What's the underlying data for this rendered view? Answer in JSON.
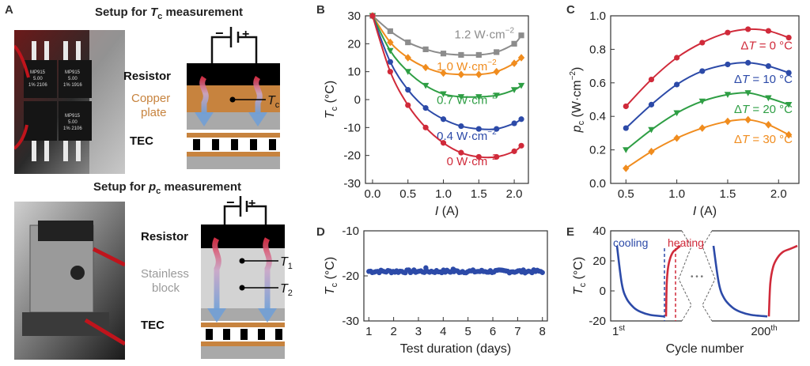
{
  "panels": {
    "A": "A",
    "B": "B",
    "C": "C",
    "D": "D",
    "E": "E"
  },
  "panel_a": {
    "top_title_prefix": "Setup for ",
    "top_title_symbol": "T",
    "top_title_sub": "c",
    "top_title_suffix": " measurement",
    "top_labels": {
      "resistor": "Resistor",
      "plate_line1": "Copper",
      "plate_line2": "plate",
      "probe_symbol": "T",
      "probe_sub": "c",
      "tec": "TEC",
      "minus": "−",
      "plus": "+"
    },
    "top_photo_text": [
      "MP915",
      "5.00",
      "1% 2106",
      "MP915",
      "5.00",
      "1% 1916",
      "MP915",
      "5.00",
      "1% 2106"
    ],
    "bottom_title_prefix": "Setup for ",
    "bottom_title_symbol": "p",
    "bottom_title_sub": "c",
    "bottom_title_suffix": " measurement",
    "bottom_labels": {
      "resistor": "Resistor",
      "block_line1": "Stainless",
      "block_line2": "block",
      "probe1_symbol": "T",
      "probe1_sub": "1",
      "probe2_symbol": "T",
      "probe2_sub": "2",
      "tec": "TEC",
      "minus": "−",
      "plus": "+"
    }
  },
  "chart_data": [
    {
      "panel": "B",
      "type": "line",
      "xlabel": "I (A)",
      "ylabel": "Tc (°C)",
      "xlim": [
        -0.1,
        2.2
      ],
      "ylim": [
        -30,
        30
      ],
      "xticks": [
        "0.0",
        "0.5",
        "1.0",
        "1.5",
        "2.0"
      ],
      "yticks": [
        "-30",
        "-20",
        "-10",
        "0",
        "10",
        "20",
        "30"
      ],
      "x": [
        0,
        0.25,
        0.5,
        0.75,
        1.0,
        1.25,
        1.5,
        1.75,
        2.0,
        2.1
      ],
      "series": [
        {
          "name": "1.2 W·cm−2",
          "color": "#8c8c8c",
          "marker": "square",
          "values": [
            30,
            24.5,
            20.5,
            18,
            16.5,
            16,
            16,
            17,
            20,
            23
          ]
        },
        {
          "name": "1.0 W·cm−2",
          "color": "#f08c1e",
          "marker": "diamond",
          "values": [
            30,
            20.5,
            15,
            11.5,
            9.5,
            9,
            9,
            10,
            13,
            15
          ]
        },
        {
          "name": "0.7 W·cm−2",
          "color": "#2e9e44",
          "marker": "triangle-down",
          "values": [
            30,
            17.5,
            10,
            5,
            2,
            1,
            1,
            1.5,
            3.5,
            5
          ]
        },
        {
          "name": "0.4 W·cm−2",
          "color": "#2c4aa8",
          "marker": "circle",
          "values": [
            30,
            13.5,
            3.5,
            -3,
            -7,
            -9.5,
            -10.5,
            -10.5,
            -8.5,
            -7
          ]
        },
        {
          "name": "0 W·cm−2",
          "color": "#d02a3a",
          "marker": "circle",
          "values": [
            30,
            10,
            -2,
            -10,
            -15.5,
            -19,
            -20.5,
            -20.5,
            -18.5,
            -16.5
          ]
        }
      ],
      "series_labels": [
        {
          "text": "1.2 W·cm",
          "exp": "−2",
          "color": "#8c8c8c"
        },
        {
          "text": "1.0 W·cm",
          "exp": "−2",
          "color": "#f08c1e"
        },
        {
          "text": "0.7 W·cm",
          "exp": "−2",
          "color": "#2e9e44"
        },
        {
          "text": "0.4 W·cm",
          "exp": "−2",
          "color": "#2c4aa8"
        },
        {
          "text": "0 W·cm",
          "exp": "−2",
          "color": "#d02a3a"
        }
      ],
      "ylabel_parts": {
        "symbol": "T",
        "sub": "c",
        "unit": " (°C)"
      },
      "xlabel_parts": {
        "symbol": "I",
        "unit": " (A)"
      }
    },
    {
      "panel": "C",
      "type": "line",
      "xlabel": "I (A)",
      "ylabel": "pc (W·cm−2)",
      "xlim": [
        0.35,
        2.2
      ],
      "ylim": [
        0.0,
        1.0
      ],
      "xticks": [
        "0.5",
        "1.0",
        "1.5",
        "2.0"
      ],
      "yticks": [
        "0.0",
        "0.2",
        "0.4",
        "0.6",
        "0.8",
        "1.0"
      ],
      "x": [
        0.5,
        0.75,
        1.0,
        1.25,
        1.5,
        1.7,
        1.9,
        2.1
      ],
      "series": [
        {
          "name": "ΔT = 0 °C",
          "color": "#d02a3a",
          "marker": "circle",
          "values": [
            0.46,
            0.62,
            0.75,
            0.84,
            0.9,
            0.92,
            0.91,
            0.87
          ]
        },
        {
          "name": "ΔT = 10 °C",
          "color": "#2c4aa8",
          "marker": "circle",
          "values": [
            0.33,
            0.47,
            0.59,
            0.67,
            0.71,
            0.72,
            0.7,
            0.66
          ]
        },
        {
          "name": "ΔT = 20 °C",
          "color": "#2e9e44",
          "marker": "triangle-down",
          "values": [
            0.2,
            0.32,
            0.42,
            0.49,
            0.53,
            0.54,
            0.51,
            0.47
          ]
        },
        {
          "name": "ΔT = 30 °C",
          "color": "#f08c1e",
          "marker": "diamond",
          "values": [
            0.09,
            0.19,
            0.27,
            0.33,
            0.37,
            0.38,
            0.35,
            0.29
          ]
        }
      ],
      "series_labels": [
        {
          "prefix": "Δ",
          "symbol": "T",
          "suffix": " = 0 °C",
          "color": "#d02a3a"
        },
        {
          "prefix": "Δ",
          "symbol": "T",
          "suffix": " = 10 °C",
          "color": "#2c4aa8"
        },
        {
          "prefix": "Δ",
          "symbol": "T",
          "suffix": " = 20 °C",
          "color": "#2e9e44"
        },
        {
          "prefix": "Δ",
          "symbol": "T",
          "suffix": " = 30 °C",
          "color": "#f08c1e"
        }
      ],
      "ylabel_parts": {
        "symbol": "p",
        "sub": "c",
        "unit": " (W·cm",
        "exp": "−2",
        "close": ")"
      },
      "xlabel_parts": {
        "symbol": "I",
        "unit": " (A)"
      }
    },
    {
      "panel": "D",
      "type": "scatter",
      "xlabel": "Test duration (days)",
      "ylabel": "Tc (°C)",
      "xlim": [
        0.8,
        8.2
      ],
      "ylim": [
        -30,
        -10
      ],
      "xticks": [
        "1",
        "2",
        "3",
        "4",
        "5",
        "6",
        "7",
        "8"
      ],
      "yticks": [
        "-30",
        "-20",
        "-10"
      ],
      "series": [
        {
          "name": "",
          "color": "#2c4aa8",
          "x_start": 1,
          "x_end": 8,
          "mean": -19,
          "noise": 0.35,
          "outliers": [
            [
              3.3,
              -18.2
            ],
            [
              4.4,
              -18.5
            ]
          ]
        }
      ],
      "ylabel_parts": {
        "symbol": "T",
        "sub": "c",
        "unit": " (°C)"
      }
    },
    {
      "panel": "E",
      "type": "line",
      "xlabel": "Cycle number",
      "ylabel": "Tc (°C)",
      "ylim": [
        -20,
        40
      ],
      "yticks": [
        "-20",
        "0",
        "20",
        "40"
      ],
      "xtick_labels": [
        {
          "num": "1",
          "sup": "st"
        },
        {
          "num": "200",
          "sup": "th"
        }
      ],
      "cooling_label": "cooling",
      "heating_label": "heating",
      "ellipsis": "• • •",
      "segments": [
        {
          "name": "cooling",
          "color": "#2c4aa8",
          "t": [
            0,
            0.1,
            0.2,
            0.35,
            0.5,
            0.7,
            1.0
          ],
          "values": [
            30,
            5,
            -5,
            -11,
            -14,
            -16,
            -17
          ]
        },
        {
          "name": "heating",
          "color": "#d02a3a",
          "t": [
            0,
            0.05,
            0.15,
            0.3,
            0.5,
            0.75,
            1.0
          ],
          "values": [
            -17,
            5,
            16,
            22,
            26,
            28,
            30
          ]
        }
      ],
      "ylabel_parts": {
        "symbol": "T",
        "sub": "c",
        "unit": " (°C)"
      }
    }
  ]
}
